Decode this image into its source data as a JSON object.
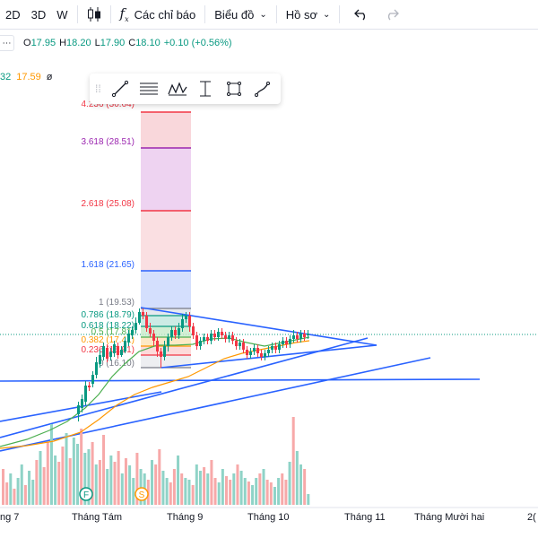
{
  "toolbar": {
    "intervals": [
      "2D",
      "3D",
      "W"
    ],
    "indicators_label": "Các chỉ báo",
    "chart_label": "Biểu đồ",
    "profile_label": "Hồ sơ"
  },
  "legend": {
    "open_key": "O",
    "open": "17.95",
    "high_key": "H",
    "high": "18.20",
    "low_key": "L",
    "low": "17.90",
    "close_key": "C",
    "close": "18.10",
    "change": "+0.10 (+0.56%)",
    "ma_values": [
      "32",
      "17.59",
      "ø"
    ]
  },
  "fib_levels": [
    {
      "label": "4.236 (30.64)",
      "color": "#f23645"
    },
    {
      "label": "3.618 (28.51)",
      "color": "#9c27b0"
    },
    {
      "label": "2.618 (25.08)",
      "color": "#f23645"
    },
    {
      "label": "1.618 (21.65)",
      "color": "#2962ff"
    },
    {
      "label": "1 (19.53)",
      "color": "#787b86"
    },
    {
      "label": "0.786 (18.79)",
      "color": "#089981"
    },
    {
      "label": "0.618 (18.22)",
      "color": "#089981"
    },
    {
      "label": "0.5 (17.81)",
      "color": "#4caf50"
    },
    {
      "label": "0.382 (17.41)",
      "color": "#ff9800"
    },
    {
      "label": "0.236 (16.91)",
      "color": "#f23645"
    },
    {
      "label": "0 (16.10)",
      "color": "#787b86"
    }
  ],
  "x_axis": [
    "ng 7",
    "Tháng Tám",
    "Tháng 9",
    "Tháng 10",
    "Tháng 11",
    "Tháng Mười hai",
    "2("
  ],
  "markers": [
    "F",
    "S"
  ],
  "colors": {
    "up": "#089981",
    "down": "#f23645",
    "trend": "#2962ff",
    "ma_fast": "#4caf50",
    "ma_slow": "#ff9800"
  }
}
